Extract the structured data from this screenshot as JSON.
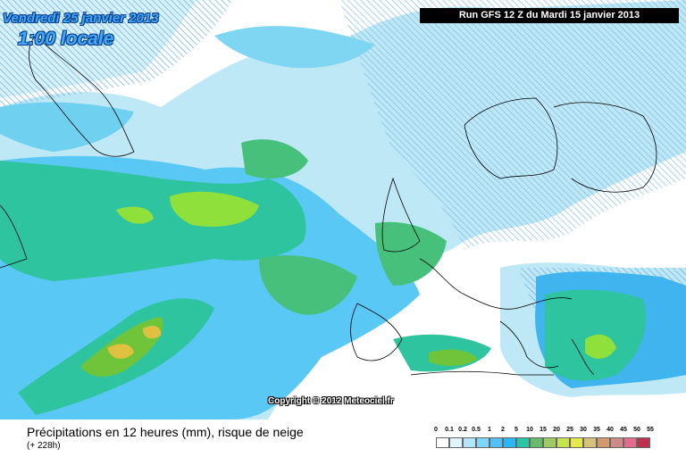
{
  "header": {
    "date": "Vendredi 25 janvier 2013",
    "time": "1:00 locale",
    "run": "Run GFS 12 Z du Mardi 15 janvier 2013"
  },
  "copyright": "Copyright © 2012 Meteociel.fr",
  "caption": {
    "title": "Précipitations en 12 heures (mm), risque de neige",
    "lead": "(+ 228h)"
  },
  "legend": {
    "labels": [
      "0",
      "0.1",
      "0.2",
      "0.5",
      "1",
      "2",
      "5",
      "10",
      "15",
      "20",
      "25",
      "30",
      "35",
      "40",
      "45",
      "50",
      "55"
    ],
    "colors": [
      "#ffffff",
      "#e1f5fe",
      "#b3e5fc",
      "#81d4fa",
      "#4fc3f7",
      "#29b6f6",
      "#26c6a6",
      "#66bb6a",
      "#9ccc65",
      "#c5e34a",
      "#e8e84a",
      "#d7c27a",
      "#d09a6a",
      "#cf8a8a",
      "#e36c8c",
      "#c03050"
    ]
  },
  "colors": {
    "title_fill": "#3fa9f5",
    "title_outline": "#0a3d8f"
  }
}
